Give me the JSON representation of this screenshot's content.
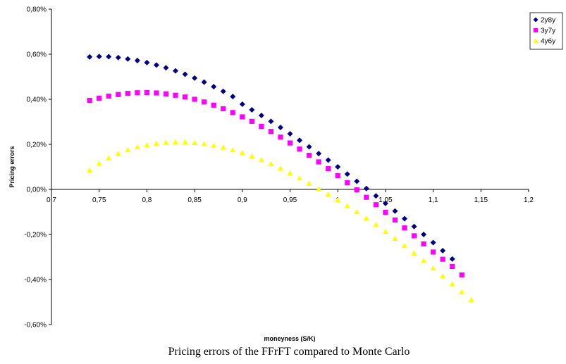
{
  "chart_data": {
    "type": "scatter",
    "caption": "Pricing errors of the FFrFT compared to Monte Carlo",
    "xlabel": "moneyness (S/K)",
    "ylabel": "Pricing errors",
    "xlim": [
      0.7,
      1.2
    ],
    "xticks": [
      {
        "value": 0.7,
        "label": "0,7"
      },
      {
        "value": 0.75,
        "label": "0,75"
      },
      {
        "value": 0.8,
        "label": "0,8"
      },
      {
        "value": 0.85,
        "label": "0,85"
      },
      {
        "value": 0.9,
        "label": "0,9"
      },
      {
        "value": 0.95,
        "label": "0,95"
      },
      1,
      {
        "value": 1.05,
        "label": "1,05"
      },
      {
        "value": 1.1,
        "label": "1,1"
      },
      {
        "value": 1.15,
        "label": "1,15"
      },
      {
        "value": 1.2,
        "label": "1,2"
      }
    ],
    "ylim": [
      -0.6,
      0.8
    ],
    "yticks": [
      {
        "value": -0.6,
        "label": "-0,60%"
      },
      {
        "value": -0.4,
        "label": "-0,40%"
      },
      {
        "value": -0.2,
        "label": "-0,20%"
      },
      {
        "value": 0,
        "label": "0,00%"
      },
      {
        "value": 0.2,
        "label": "0,20%"
      },
      {
        "value": 0.4,
        "label": "0,40%"
      },
      {
        "value": 0.6,
        "label": "0,60%"
      },
      {
        "value": 0.8,
        "label": "0,80%"
      }
    ],
    "legend": "upper right",
    "series": [
      {
        "name": "2y8y",
        "color": "#000080",
        "marker": "diamond",
        "x": [
          0.74,
          0.75,
          0.76,
          0.77,
          0.78,
          0.79,
          0.8,
          0.81,
          0.82,
          0.83,
          0.84,
          0.85,
          0.86,
          0.87,
          0.88,
          0.89,
          0.9,
          0.91,
          0.92,
          0.93,
          0.94,
          0.95,
          0.96,
          0.97,
          0.98,
          0.99,
          1.0,
          1.01,
          1.02,
          1.03,
          1.04,
          1.05,
          1.06,
          1.07,
          1.08,
          1.09,
          1.1,
          1.11,
          1.12
        ],
        "values": [
          0.588,
          0.59,
          0.589,
          0.585,
          0.579,
          0.572,
          0.563,
          0.552,
          0.54,
          0.526,
          0.511,
          0.494,
          0.476,
          0.456,
          0.435,
          0.412,
          0.378,
          0.353,
          0.328,
          0.302,
          0.275,
          0.247,
          0.218,
          0.189,
          0.159,
          0.13,
          0.1,
          0.068,
          0.036,
          0.004,
          -0.029,
          -0.062,
          -0.096,
          -0.13,
          -0.165,
          -0.2,
          -0.236,
          -0.272,
          -0.309
        ]
      },
      {
        "name": "3y7y",
        "color": "#ff00ff",
        "marker": "square",
        "x": [
          0.74,
          0.75,
          0.76,
          0.77,
          0.78,
          0.79,
          0.8,
          0.81,
          0.82,
          0.83,
          0.84,
          0.85,
          0.86,
          0.87,
          0.88,
          0.89,
          0.9,
          0.91,
          0.92,
          0.93,
          0.94,
          0.95,
          0.96,
          0.97,
          0.98,
          0.99,
          1.0,
          1.01,
          1.02,
          1.03,
          1.04,
          1.05,
          1.06,
          1.07,
          1.08,
          1.09,
          1.1,
          1.11,
          1.12,
          1.13
        ],
        "values": [
          0.395,
          0.405,
          0.414,
          0.421,
          0.426,
          0.429,
          0.43,
          0.428,
          0.424,
          0.418,
          0.41,
          0.4,
          0.388,
          0.374,
          0.358,
          0.341,
          0.322,
          0.302,
          0.28,
          0.257,
          0.232,
          0.206,
          0.179,
          0.151,
          0.122,
          0.092,
          0.061,
          0.03,
          -0.002,
          -0.035,
          -0.068,
          -0.102,
          -0.136,
          -0.171,
          -0.206,
          -0.242,
          -0.278,
          -0.31,
          -0.342,
          -0.38
        ]
      },
      {
        "name": "4y6y",
        "color": "#ffff00",
        "marker": "triangle",
        "x": [
          0.74,
          0.75,
          0.76,
          0.77,
          0.78,
          0.79,
          0.8,
          0.81,
          0.82,
          0.83,
          0.84,
          0.85,
          0.86,
          0.87,
          0.88,
          0.89,
          0.9,
          0.91,
          0.92,
          0.93,
          0.94,
          0.95,
          0.96,
          0.97,
          0.98,
          0.99,
          1.0,
          1.01,
          1.02,
          1.03,
          1.04,
          1.05,
          1.06,
          1.07,
          1.08,
          1.09,
          1.1,
          1.11,
          1.12,
          1.13,
          1.14
        ],
        "values": [
          0.085,
          0.115,
          0.139,
          0.159,
          0.175,
          0.188,
          0.197,
          0.204,
          0.208,
          0.21,
          0.21,
          0.207,
          0.202,
          0.195,
          0.186,
          0.175,
          0.162,
          0.147,
          0.131,
          0.113,
          0.093,
          0.072,
          0.05,
          0.026,
          0.002,
          -0.022,
          -0.047,
          -0.073,
          -0.1,
          -0.128,
          -0.157,
          -0.187,
          -0.218,
          -0.25,
          -0.283,
          -0.316,
          -0.35,
          -0.385,
          -0.42,
          -0.455,
          -0.49
        ]
      }
    ]
  }
}
